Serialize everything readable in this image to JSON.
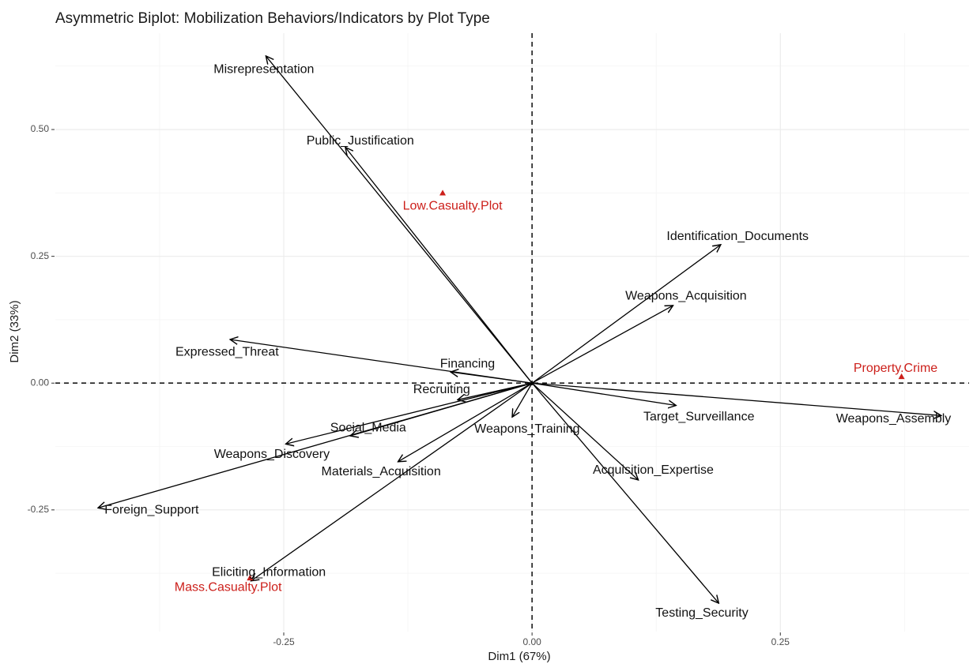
{
  "chart_data": {
    "type": "scatter",
    "subtype": "biplot",
    "title": "Asymmetric Biplot: Mobilization Behaviors/Indicators by Plot Type",
    "xlabel": "Dim1 (67%)",
    "ylabel": "Dim2 (33%)",
    "xlim": [
      -0.48,
      0.44
    ],
    "ylim": [
      -0.49,
      0.69
    ],
    "x_ticks": [
      -0.25,
      0.0,
      0.25
    ],
    "x_tick_labels": [
      "-0.25",
      "0.00",
      "0.25"
    ],
    "y_ticks": [
      -0.25,
      0.0,
      0.25,
      0.5
    ],
    "y_tick_labels": [
      "-0.25",
      "0.00",
      "0.25",
      "0.50"
    ],
    "grid": true,
    "reference_lines": "dashed lines at x = 0 and y = 0",
    "arrow_color": "#000000",
    "point_color": "#cc1f1a",
    "variables": [
      {
        "name": "Misrepresentation",
        "x": -0.268,
        "y": 0.645,
        "label_x": -0.27,
        "label_y": 0.618
      },
      {
        "name": "Public_Justification",
        "x": -0.188,
        "y": 0.465,
        "label_x": -0.173,
        "label_y": 0.477
      },
      {
        "name": "Identification_Documents",
        "x": 0.19,
        "y": 0.273,
        "label_x": 0.207,
        "label_y": 0.289
      },
      {
        "name": "Weapons_Acquisition",
        "x": 0.142,
        "y": 0.153,
        "label_x": 0.155,
        "label_y": 0.171
      },
      {
        "name": "Expressed_Threat",
        "x": -0.304,
        "y": 0.086,
        "label_x": -0.307,
        "label_y": 0.061
      },
      {
        "name": "Financing",
        "x": -0.082,
        "y": 0.022,
        "label_x": -0.065,
        "label_y": 0.037
      },
      {
        "name": "Recruiting",
        "x": -0.075,
        "y": -0.033,
        "label_x": -0.091,
        "label_y": -0.013
      },
      {
        "name": "Social_Media",
        "x": -0.183,
        "y": -0.104,
        "label_x": -0.165,
        "label_y": -0.089
      },
      {
        "name": "Weapons_Training",
        "x": -0.02,
        "y": -0.067,
        "label_x": -0.005,
        "label_y": -0.091
      },
      {
        "name": "Target_Surveillance",
        "x": 0.145,
        "y": -0.044,
        "label_x": 0.168,
        "label_y": -0.067
      },
      {
        "name": "Weapons_Assembly",
        "x": 0.412,
        "y": -0.064,
        "label_x": 0.364,
        "label_y": -0.071
      },
      {
        "name": "Weapons_Discovery",
        "x": -0.248,
        "y": -0.12,
        "label_x": -0.262,
        "label_y": -0.141
      },
      {
        "name": "Materials_Acquisition",
        "x": -0.135,
        "y": -0.155,
        "label_x": -0.152,
        "label_y": -0.175
      },
      {
        "name": "Acquisition_Expertise",
        "x": 0.107,
        "y": -0.191,
        "label_x": 0.122,
        "label_y": -0.172
      },
      {
        "name": "Foreign_Support",
        "x": -0.437,
        "y": -0.246,
        "label_x": -0.383,
        "label_y": -0.251
      },
      {
        "name": "Eliciting_Information",
        "x": -0.283,
        "y": -0.39,
        "label_x": -0.265,
        "label_y": -0.374
      },
      {
        "name": "Testing_Security",
        "x": 0.188,
        "y": -0.434,
        "label_x": 0.171,
        "label_y": -0.454
      }
    ],
    "individuals": [
      {
        "name": "Low.Casualty.Plot",
        "x": -0.09,
        "y": 0.375,
        "label_x": -0.08,
        "label_y": 0.349
      },
      {
        "name": "Property.Crime",
        "x": 0.372,
        "y": 0.013,
        "label_x": 0.366,
        "label_y": 0.029
      },
      {
        "name": "Mass.Casualty.Plot",
        "x": -0.284,
        "y": -0.384,
        "label_x": -0.306,
        "label_y": -0.403
      }
    ]
  }
}
